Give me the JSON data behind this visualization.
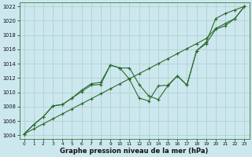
{
  "xlabel": "Graphe pression niveau de la mer (hPa)",
  "xlim": [
    -0.5,
    23.5
  ],
  "ylim": [
    1003.5,
    1022.5
  ],
  "yticks": [
    1004,
    1006,
    1008,
    1010,
    1012,
    1014,
    1016,
    1018,
    1020,
    1022
  ],
  "xticks": [
    0,
    1,
    2,
    3,
    4,
    5,
    6,
    7,
    8,
    9,
    10,
    11,
    12,
    13,
    14,
    15,
    16,
    17,
    18,
    19,
    20,
    21,
    22,
    23
  ],
  "background_color": "#cce8ee",
  "grid_color": "#aacccc",
  "line_color": "#2d6a2d",
  "line1_x": [
    0,
    1,
    2,
    3,
    4,
    5,
    6,
    7,
    8,
    9,
    10,
    11,
    12,
    13,
    14,
    15,
    16,
    17,
    18,
    19,
    20,
    21,
    22,
    23
  ],
  "line1_y": [
    1004.2,
    1004.9,
    1005.6,
    1006.3,
    1007.0,
    1007.7,
    1008.4,
    1009.1,
    1009.8,
    1010.5,
    1011.2,
    1011.9,
    1012.6,
    1013.3,
    1014.0,
    1014.7,
    1015.4,
    1016.1,
    1016.8,
    1017.5,
    1018.9,
    1019.6,
    1020.3,
    1022.0
  ],
  "line2_x": [
    0,
    1,
    2,
    3,
    4,
    5,
    6,
    7,
    8,
    9,
    10,
    11,
    12,
    13,
    14,
    15,
    16,
    17,
    18,
    19,
    20,
    21,
    22,
    23
  ],
  "line2_y": [
    1004.2,
    1005.5,
    1006.6,
    1008.1,
    1008.3,
    1009.2,
    1010.1,
    1011.0,
    1011.1,
    1013.8,
    1013.4,
    1013.4,
    1011.1,
    1009.5,
    1009.0,
    1010.9,
    1012.3,
    1011.0,
    1015.8,
    1017.0,
    1020.3,
    1021.0,
    1021.5,
    1022.0
  ],
  "line3_x": [
    0,
    1,
    2,
    3,
    4,
    5,
    6,
    7,
    8,
    9,
    10,
    11,
    12,
    13,
    14,
    15,
    16,
    17,
    18,
    19,
    20,
    21,
    22,
    23
  ],
  "line3_y": [
    1004.2,
    1005.5,
    1006.6,
    1008.1,
    1008.3,
    1009.2,
    1010.3,
    1011.2,
    1011.4,
    1013.8,
    1013.4,
    1011.8,
    1009.2,
    1008.8,
    1010.9,
    1011.0,
    1012.3,
    1011.0,
    1015.8,
    1016.8,
    1018.8,
    1019.3,
    1020.3,
    1022.0
  ]
}
